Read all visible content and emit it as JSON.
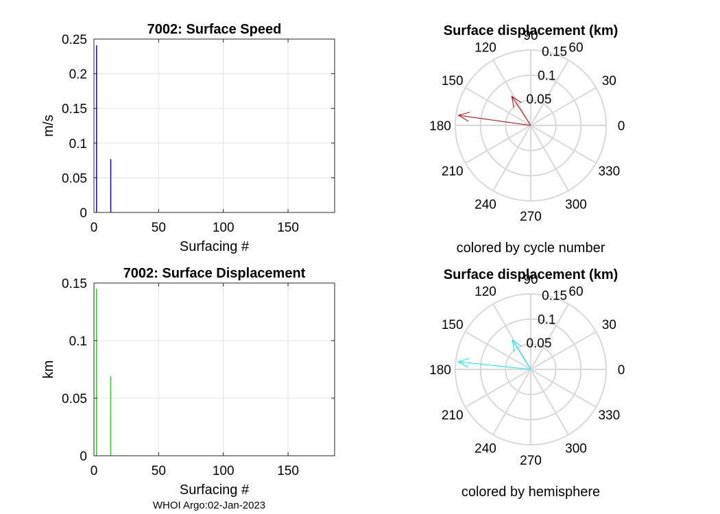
{
  "footer": "WHOI Argo:02-Jan-2023",
  "chart_data": [
    {
      "type": "bar",
      "title": "7002: Surface Speed",
      "xlabel": "Surfacing #",
      "ylabel": "m/s",
      "xlim": [
        0,
        186
      ],
      "ylim": [
        0,
        0.25
      ],
      "xticks": [
        "0",
        "50",
        "100",
        "150"
      ],
      "yticks": [
        "0",
        "0.05",
        "0.1",
        "0.15",
        "0.2",
        "0.25"
      ],
      "grid": true,
      "color": "#0000ff",
      "x": [
        2,
        13
      ],
      "values": [
        0.241,
        0.077
      ]
    },
    {
      "type": "bar",
      "title": "7002: Surface Displacement",
      "xlabel": "Surfacing #",
      "ylabel": "km",
      "xlim": [
        0,
        186
      ],
      "ylim": [
        0,
        0.15
      ],
      "xticks": [
        "0",
        "50",
        "100",
        "150"
      ],
      "yticks": [
        "0",
        "0.05",
        "0.1",
        "0.15"
      ],
      "grid": true,
      "color": "#00ee00",
      "x": [
        2,
        13
      ],
      "values": [
        0.145,
        0.069
      ]
    },
    {
      "type": "polar",
      "title": "Surface displacement (km)",
      "caption": "colored by cycle number",
      "rmax": 0.15,
      "rticks": [
        "0.05",
        "0.1",
        "0.15"
      ],
      "angle_ticks": [
        "0",
        "30",
        "60",
        "90",
        "120",
        "150",
        "180",
        "210",
        "240",
        "270",
        "300",
        "330"
      ],
      "color": "#aa0000",
      "vectors": [
        {
          "angle_deg": 172,
          "r": 0.145
        },
        {
          "angle_deg": 123,
          "r": 0.069
        }
      ]
    },
    {
      "type": "polar",
      "title": "Surface displacement (km)",
      "caption": "colored by hemisphere",
      "rmax": 0.15,
      "rticks": [
        "0.05",
        "0.1",
        "0.15"
      ],
      "angle_ticks": [
        "0",
        "30",
        "60",
        "90",
        "120",
        "150",
        "180",
        "210",
        "240",
        "270",
        "300",
        "330"
      ],
      "color": "#00eeee",
      "vectors": [
        {
          "angle_deg": 174,
          "r": 0.145
        },
        {
          "angle_deg": 122,
          "r": 0.069
        }
      ]
    }
  ]
}
